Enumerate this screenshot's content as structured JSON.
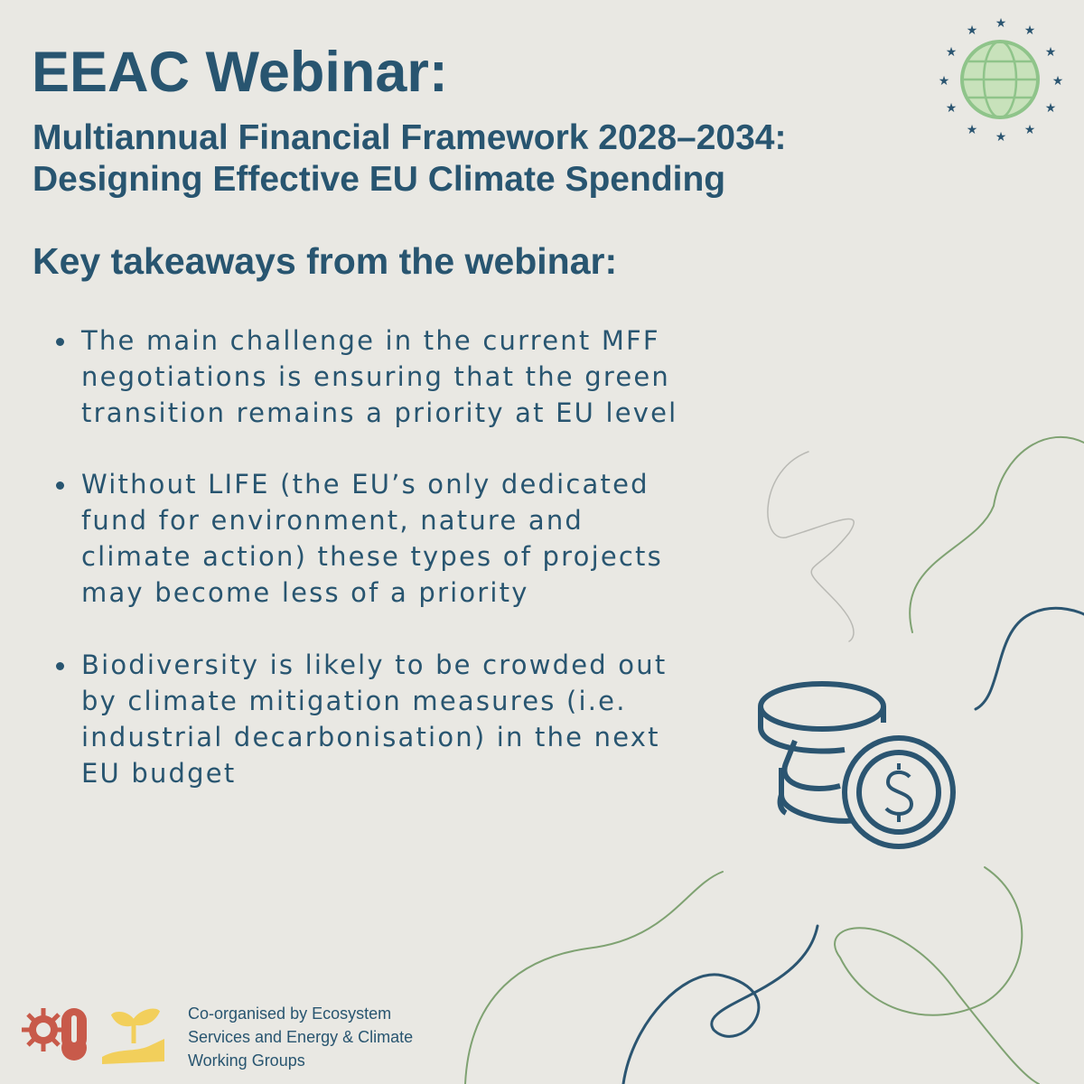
{
  "header": {
    "title": "EEAC Webinar:",
    "subtitle_lines": [
      "Multiannual Financial Framework 2028–2034:",
      "Designing Effective EU Climate Spending"
    ]
  },
  "section": {
    "heading": "Key takeaways from the webinar:",
    "bullets": [
      [
        "The main challenge in the current MFF",
        "negotiations is ensuring that the green",
        "transition remains a priority at EU level"
      ],
      [
        "Without LIFE (the EU’s only dedicated",
        "fund for environment, nature and",
        "climate action) these types of projects",
        "may become less of a priority"
      ],
      [
        "Biodiversity is likely to be crowded out",
        "by climate mitigation measures (i.e.",
        "industrial decarbonisation) in the next",
        "EU budget"
      ]
    ]
  },
  "footer": {
    "lines": [
      "Co-organised by Ecosystem",
      "Services and Energy & Climate",
      "Working Groups"
    ]
  }
}
